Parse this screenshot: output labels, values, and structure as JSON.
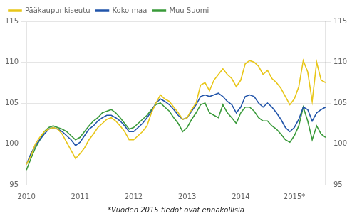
{
  "chart_data": {
    "type": "line",
    "annotations": [
      "*Vuoden 2015 tiedot ovat ennakollisia"
    ],
    "categories": [
      "2010",
      null,
      null,
      null,
      null,
      null,
      null,
      null,
      null,
      null,
      null,
      null,
      "2011",
      null,
      null,
      null,
      null,
      null,
      null,
      null,
      null,
      null,
      null,
      null,
      "2012",
      null,
      null,
      null,
      null,
      null,
      null,
      null,
      null,
      null,
      null,
      null,
      "2013",
      null,
      null,
      null,
      null,
      null,
      null,
      null,
      null,
      null,
      null,
      null,
      "2014",
      null,
      null,
      null,
      null,
      null,
      null,
      null,
      null,
      null,
      null,
      null,
      "2015*",
      null,
      null,
      null,
      null,
      null,
      null,
      null
    ],
    "series": [
      {
        "name": "Pääkaupunkiseutu",
        "color": "#e8c619",
        "values": [
          97.5,
          98.5,
          100.0,
          100.8,
          101.5,
          101.8,
          102.0,
          101.8,
          101.2,
          100.2,
          99.2,
          98.2,
          98.8,
          99.5,
          100.5,
          101.2,
          102.0,
          102.5,
          103.0,
          103.2,
          102.8,
          102.2,
          101.5,
          100.5,
          100.5,
          101.0,
          101.5,
          102.2,
          103.8,
          105.0,
          106.0,
          105.5,
          105.2,
          104.5,
          103.8,
          103.0,
          103.2,
          104.2,
          105.0,
          107.2,
          107.5,
          106.5,
          107.8,
          108.5,
          109.2,
          108.5,
          108.0,
          107.0,
          107.8,
          109.8,
          110.2,
          110.0,
          109.5,
          108.5,
          109.0,
          108.0,
          107.5,
          106.8,
          105.8,
          104.8,
          105.5,
          107.0,
          110.2,
          108.8,
          105.2,
          110.0,
          107.8,
          107.5
        ]
      },
      {
        "name": "Koko maa",
        "color": "#2255aa",
        "values": [
          97.5,
          98.8,
          99.8,
          100.5,
          101.2,
          101.8,
          102.0,
          101.8,
          101.5,
          101.0,
          100.5,
          99.8,
          100.2,
          101.0,
          101.8,
          102.2,
          102.8,
          103.2,
          103.5,
          103.5,
          103.2,
          102.8,
          102.2,
          101.5,
          101.5,
          102.0,
          102.5,
          103.2,
          104.0,
          105.0,
          105.5,
          105.2,
          104.8,
          104.2,
          103.5,
          103.0,
          103.2,
          104.0,
          104.8,
          105.8,
          106.0,
          105.8,
          106.0,
          106.2,
          105.8,
          105.2,
          104.8,
          103.8,
          104.5,
          105.8,
          106.0,
          105.8,
          105.0,
          104.5,
          105.0,
          104.5,
          103.8,
          103.0,
          102.0,
          101.5,
          102.0,
          103.0,
          104.5,
          104.2,
          102.8,
          103.8,
          104.2,
          104.5
        ]
      },
      {
        "name": "Muu Suomi",
        "color": "#3a9a3a",
        "values": [
          96.8,
          98.2,
          99.5,
          100.5,
          101.5,
          102.0,
          102.2,
          102.0,
          101.8,
          101.5,
          101.0,
          100.5,
          100.8,
          101.5,
          102.2,
          102.8,
          103.2,
          103.8,
          104.0,
          104.2,
          103.8,
          103.2,
          102.5,
          101.8,
          102.0,
          102.5,
          103.0,
          103.5,
          104.2,
          104.8,
          105.0,
          104.5,
          104.0,
          103.2,
          102.5,
          101.5,
          102.0,
          103.0,
          103.8,
          104.8,
          105.0,
          103.8,
          103.5,
          103.2,
          104.8,
          103.8,
          103.2,
          102.5,
          103.8,
          104.5,
          104.5,
          104.0,
          103.2,
          102.8,
          102.8,
          102.2,
          101.8,
          101.2,
          100.5,
          100.2,
          101.0,
          102.2,
          104.5,
          102.8,
          100.5,
          102.2,
          101.2,
          100.8
        ]
      }
    ],
    "ylim": [
      95,
      115
    ],
    "yticks": [
      95,
      100,
      105,
      110,
      115
    ],
    "y2lim": [
      95,
      115
    ],
    "y2ticks": [
      95,
      100,
      105,
      110,
      115
    ],
    "grid": "y",
    "legend": "upper left"
  }
}
